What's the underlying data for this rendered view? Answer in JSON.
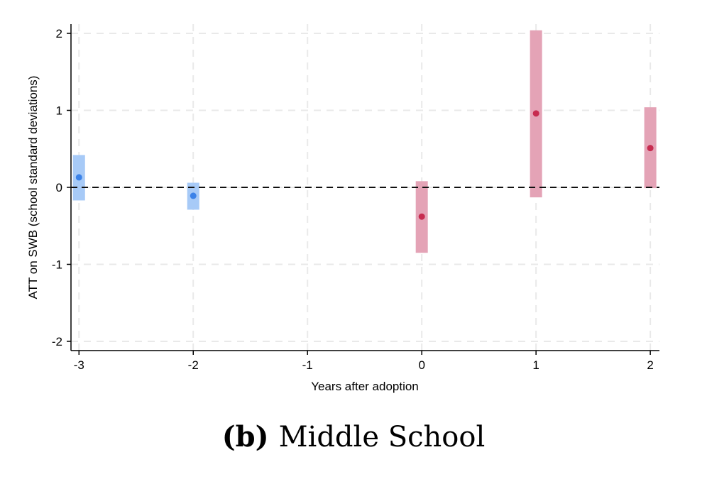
{
  "chart_data": {
    "type": "scatter",
    "xlabel": "Years after adoption",
    "ylabel": "ATT on SWB (school standard deviations)",
    "xlim": [
      -3.07,
      2.08
    ],
    "ylim": [
      -2.12,
      2.12
    ],
    "x_ticks": [
      -3,
      -2,
      -1,
      0,
      1,
      2
    ],
    "y_ticks": [
      -2,
      -1,
      0,
      1,
      2
    ],
    "grid": true,
    "reference_line_y": 0,
    "colors": {
      "pre": "#3b82e8",
      "pre_band": "#a7caf7",
      "post": "#c72c50",
      "post_band": "#e4a3b6"
    },
    "series": [
      {
        "group": "pre",
        "points": [
          {
            "x": -3,
            "estimate": 0.13,
            "ci_low": -0.17,
            "ci_high": 0.42
          },
          {
            "x": -2,
            "estimate": -0.11,
            "ci_low": -0.29,
            "ci_high": 0.06
          }
        ]
      },
      {
        "group": "post",
        "points": [
          {
            "x": 0,
            "estimate": -0.38,
            "ci_low": -0.85,
            "ci_high": 0.08
          },
          {
            "x": 1,
            "estimate": 0.96,
            "ci_low": -0.13,
            "ci_high": 2.04
          },
          {
            "x": 2,
            "estimate": 0.51,
            "ci_low": -0.01,
            "ci_high": 1.04
          }
        ]
      }
    ]
  },
  "caption": {
    "label": "(b)",
    "text": "Middle School"
  }
}
